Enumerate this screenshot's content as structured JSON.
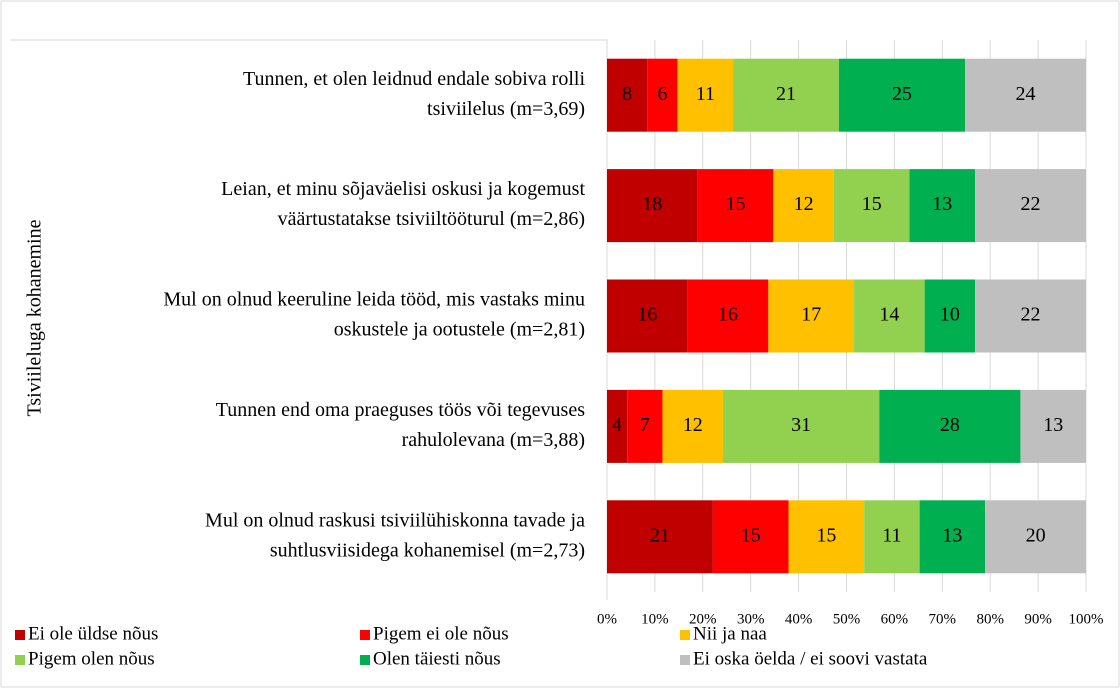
{
  "chart_data": {
    "type": "bar",
    "orientation": "horizontal",
    "stacked": "percent",
    "y_label": "Tsiviileluga kohanemine",
    "categories": [
      [
        "Tunnen, et olen leidnud endale sobiva rolli",
        "tsiviilelus (m=3,69)"
      ],
      [
        "Leian, et minu sõjaväelisi oskusi ja kogemust",
        "väärtustatakse tsiviiltööturul (m=2,86)"
      ],
      [
        "Mul on olnud keeruline leida tööd, mis vastaks minu",
        "oskustele ja ootustele (m=2,81)"
      ],
      [
        "Tunnen end oma praeguses töös või tegevuses",
        "rahulolevana (m=3,88)"
      ],
      [
        "Mul on olnud raskusi tsiviilühiskonna tavade ja",
        "suhtlusviisidega kohanemisel (m=2,73)"
      ]
    ],
    "series": [
      {
        "name": "Ei ole üldse nõus",
        "color": "#c00000",
        "values": [
          8,
          18,
          16,
          4,
          21
        ]
      },
      {
        "name": "Pigem ei ole nõus",
        "color": "#ff0000",
        "values": [
          6,
          15,
          16,
          7,
          15
        ]
      },
      {
        "name": "Nii ja naa",
        "color": "#ffc000",
        "values": [
          11,
          12,
          17,
          12,
          15
        ]
      },
      {
        "name": "Pigem olen nõus",
        "color": "#92d050",
        "values": [
          21,
          15,
          14,
          31,
          11
        ]
      },
      {
        "name": "Olen täiesti nõus",
        "color": "#00b050",
        "values": [
          25,
          13,
          10,
          28,
          13
        ]
      },
      {
        "name": "Ei oska öelda / ei soovi vastata",
        "color": "#bfbfbf",
        "values": [
          24,
          22,
          22,
          13,
          20
        ]
      }
    ],
    "xlim": [
      0,
      100
    ],
    "xticks": [
      {
        "value": 0,
        "label": "0%"
      },
      {
        "value": 10,
        "label": "10%"
      },
      {
        "value": 20,
        "label": "20%"
      },
      {
        "value": 30,
        "label": "30%"
      },
      {
        "value": 40,
        "label": "40%"
      },
      {
        "value": 50,
        "label": "50%"
      },
      {
        "value": 60,
        "label": "60%"
      },
      {
        "value": 70,
        "label": "70%"
      },
      {
        "value": 80,
        "label": "80%"
      },
      {
        "value": 90,
        "label": "90%"
      },
      {
        "value": 100,
        "label": "100%"
      }
    ],
    "grid": true,
    "legend": "bottom"
  }
}
